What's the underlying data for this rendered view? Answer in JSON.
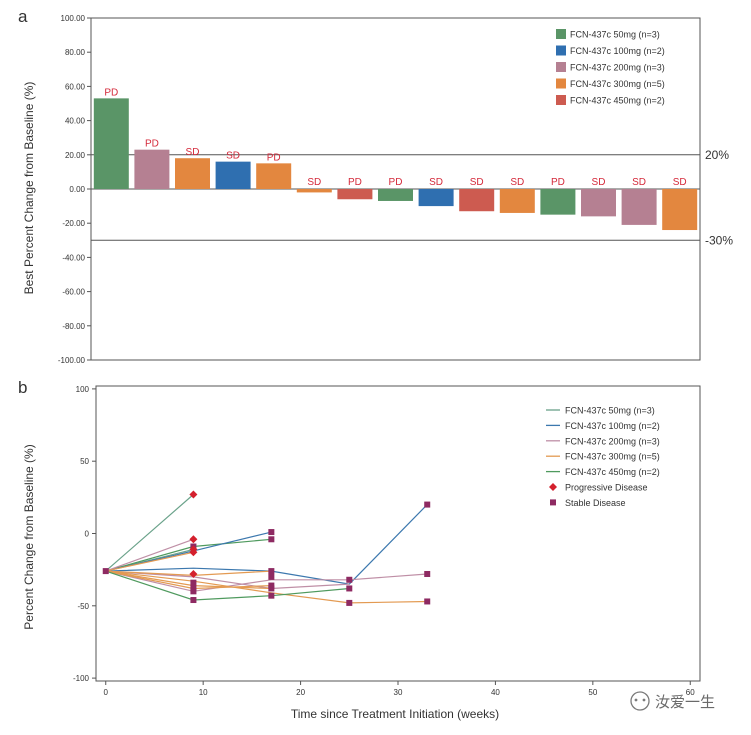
{
  "panel_a_label": "a",
  "panel_b_label": "b",
  "watermark": "汝爱一生",
  "chart_data": [
    {
      "type": "bar",
      "panel": "a",
      "ylabel": "Best Percent Change from Baseline (%)",
      "xlabel": "",
      "ylim": [
        -100,
        100
      ],
      "yticks": [
        "100.00",
        "80.00",
        "60.00",
        "40.00",
        "20.00",
        "0.00",
        "-20.00",
        "-40.00",
        "-60.00",
        "-80.00",
        "-100.00"
      ],
      "reference_lines": [
        {
          "value": 20,
          "label": "20%"
        },
        {
          "value": -30,
          "label": "-30%"
        }
      ],
      "legend_position": "top-right",
      "series_names": [
        "FCN-437c  50mg (n=3)",
        "FCN-437c  100mg (n=2)",
        "FCN-437c  200mg (n=3)",
        "FCN-437c  300mg (n=5)",
        "FCN-437c  450mg (n=2)"
      ],
      "series_colors": [
        "#5a9567",
        "#2f6fb0",
        "#b58092",
        "#e3873f",
        "#cd5b50"
      ],
      "bars": [
        {
          "value": 53,
          "series": 0,
          "label": "PD"
        },
        {
          "value": 23,
          "series": 2,
          "label": "PD"
        },
        {
          "value": 18,
          "series": 3,
          "label": "SD"
        },
        {
          "value": 16,
          "series": 1,
          "label": "SD"
        },
        {
          "value": 15,
          "series": 3,
          "label": "PD"
        },
        {
          "value": -2,
          "series": 3,
          "label": "SD"
        },
        {
          "value": -6,
          "series": 4,
          "label": "PD"
        },
        {
          "value": -7,
          "series": 0,
          "label": "PD"
        },
        {
          "value": -10,
          "series": 1,
          "label": "SD"
        },
        {
          "value": -13,
          "series": 4,
          "label": "SD"
        },
        {
          "value": -14,
          "series": 3,
          "label": "SD"
        },
        {
          "value": -15,
          "series": 0,
          "label": "PD"
        },
        {
          "value": -16,
          "series": 2,
          "label": "SD"
        },
        {
          "value": -21,
          "series": 2,
          "label": "SD"
        },
        {
          "value": -24,
          "series": 3,
          "label": "SD"
        }
      ]
    },
    {
      "type": "line",
      "panel": "b",
      "xlabel": "Time since Treatment Initiation (weeks)",
      "ylabel": "Percent Change from Baseline (%)",
      "xlim": [
        -1,
        61
      ],
      "ylim": [
        -102,
        102
      ],
      "xticks": [
        0,
        10,
        20,
        30,
        40,
        50,
        60
      ],
      "yticks": [
        100,
        50,
        0,
        -50,
        -100
      ],
      "legend_position": "top-right",
      "legend": [
        {
          "label": "FCN-437c  50mg (n=3)",
          "kind": "line",
          "color": "#6aa28a"
        },
        {
          "label": "FCN-437c  100mg (n=2)",
          "kind": "line",
          "color": "#3c78ae"
        },
        {
          "label": "FCN-437c  200mg (n=3)",
          "kind": "line",
          "color": "#bf8fa6"
        },
        {
          "label": "FCN-437c  300mg (n=5)",
          "kind": "line",
          "color": "#e39a52"
        },
        {
          "label": "FCN-437c  450mg (n=2)",
          "kind": "line",
          "color": "#4f9a5e"
        },
        {
          "label": "Progressive Disease",
          "kind": "diamond",
          "color": "#d4202d"
        },
        {
          "label": "Stable Disease",
          "kind": "square",
          "color": "#8e2a62"
        }
      ],
      "lines": [
        {
          "color": "#6aa28a",
          "points": [
            [
              0,
              -26
            ],
            [
              9,
              27
            ]
          ],
          "end": "pd"
        },
        {
          "color": "#6aa28a",
          "points": [
            [
              0,
              -26
            ],
            [
              9,
              -11
            ]
          ],
          "end": "pd"
        },
        {
          "color": "#4f9a5e",
          "points": [
            [
              0,
              -26
            ],
            [
              9,
              -9
            ],
            [
              17,
              -4
            ]
          ],
          "end": "sd"
        },
        {
          "color": "#3c78ae",
          "points": [
            [
              0,
              -26
            ],
            [
              9,
              -12
            ],
            [
              17,
              1
            ]
          ],
          "end": "sd"
        },
        {
          "color": "#3c78ae",
          "points": [
            [
              0,
              -26
            ],
            [
              9,
              -24
            ],
            [
              17,
              -26
            ],
            [
              25,
              -35
            ],
            [
              33,
              20
            ]
          ],
          "end": "sd"
        },
        {
          "color": "#bf8fa6",
          "points": [
            [
              0,
              -26
            ],
            [
              9,
              -4
            ]
          ],
          "end": "pd"
        },
        {
          "color": "#bf8fa6",
          "points": [
            [
              0,
              -26
            ],
            [
              9,
              -40
            ],
            [
              17,
              -32
            ],
            [
              25,
              -32
            ],
            [
              33,
              -28
            ]
          ],
          "end": "sd"
        },
        {
          "color": "#bf8fa6",
          "points": [
            [
              0,
              -26
            ],
            [
              9,
              -30
            ],
            [
              17,
              -38
            ],
            [
              25,
              -35
            ]
          ],
          "end": "sd"
        },
        {
          "color": "#e39a52",
          "points": [
            [
              0,
              -26
            ],
            [
              9,
              -13
            ]
          ],
          "end": "pd"
        },
        {
          "color": "#e39a52",
          "points": [
            [
              0,
              -26
            ],
            [
              9,
              -33
            ],
            [
              17,
              -41
            ],
            [
              25,
              -48
            ],
            [
              33,
              -47
            ]
          ],
          "end": "sd"
        },
        {
          "color": "#e39a52",
          "points": [
            [
              0,
              -26
            ],
            [
              9,
              -38
            ],
            [
              17,
              -36
            ]
          ],
          "end": "sd"
        },
        {
          "color": "#e39a52",
          "points": [
            [
              0,
              -26
            ],
            [
              9,
              -29
            ],
            [
              17,
              -26
            ]
          ],
          "end": "sd"
        },
        {
          "color": "#e39a52",
          "points": [
            [
              0,
              -26
            ],
            [
              9,
              -36
            ],
            [
              17,
              -38
            ]
          ],
          "end": "sd"
        },
        {
          "color": "#4f9a5e",
          "points": [
            [
              0,
              -26
            ],
            [
              9,
              -46
            ],
            [
              17,
              -43
            ],
            [
              25,
              -38
            ]
          ],
          "end": "sd"
        }
      ],
      "pd_markers": [
        [
          9,
          27
        ],
        [
          9,
          -4
        ],
        [
          9,
          -11
        ],
        [
          9,
          -13
        ],
        [
          9,
          -28
        ]
      ],
      "sd_markers": [
        [
          0,
          -26
        ],
        [
          9,
          -9
        ],
        [
          9,
          -34
        ],
        [
          9,
          -38
        ],
        [
          9,
          -40
        ],
        [
          9,
          -46
        ],
        [
          17,
          1
        ],
        [
          17,
          -4
        ],
        [
          17,
          -26
        ],
        [
          17,
          -30
        ],
        [
          17,
          -36
        ],
        [
          17,
          -38
        ],
        [
          17,
          -43
        ],
        [
          25,
          -32
        ],
        [
          25,
          -38
        ],
        [
          25,
          -48
        ],
        [
          33,
          20
        ],
        [
          33,
          -28
        ],
        [
          33,
          -47
        ]
      ]
    }
  ]
}
